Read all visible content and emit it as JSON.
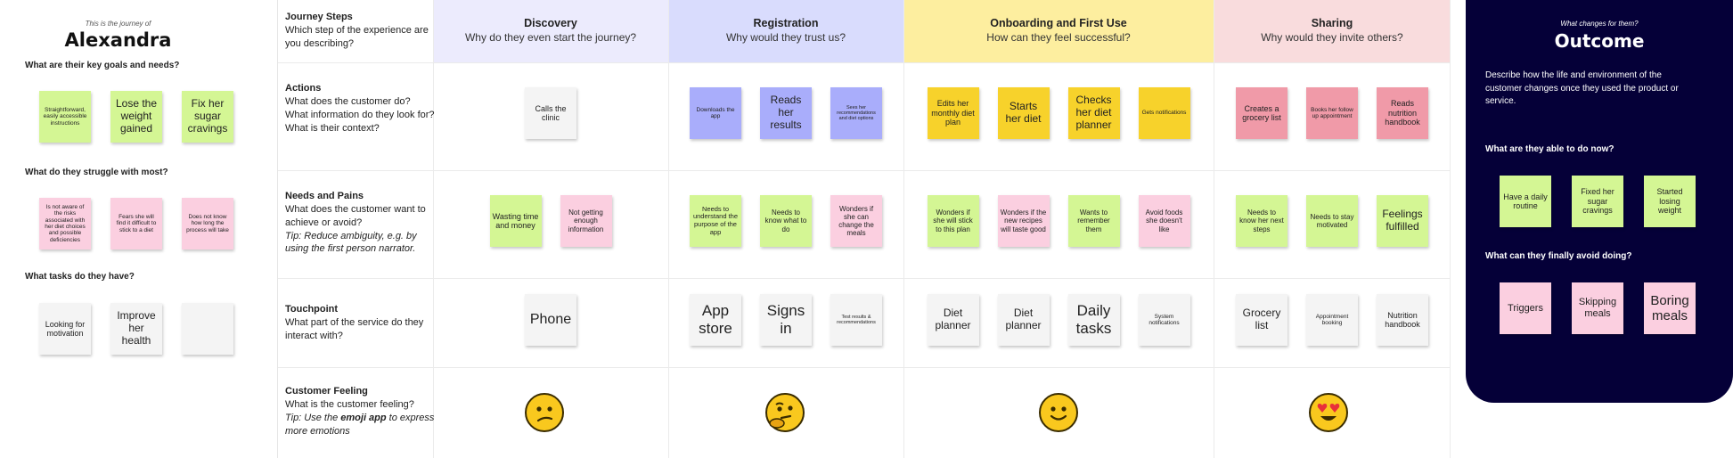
{
  "persona": {
    "intro": "This is the journey of",
    "name": "Alexandra",
    "goals_q": "What are their key goals and needs?",
    "goals": [
      "Straightforward, easily accessible instructions",
      "Lose the weight gained",
      "Fix her sugar cravings"
    ],
    "struggles_q": "What do they struggle with most?",
    "struggles": [
      "Is not aware of the risks associated with her diet choices and possible deficiencies",
      "Fears she will find it difficult to stick to a diet",
      "Does not know how long the process will take"
    ],
    "tasks_q": "What tasks do they have?",
    "tasks": [
      "Looking for motivation",
      "Improve her health",
      ""
    ]
  },
  "rows": {
    "steps": {
      "title": "Journey Steps",
      "text": "Which step of the experience are you describing?"
    },
    "actions": {
      "title": "Actions",
      "text": "What does the customer do? What information do they look for? What is their context?"
    },
    "needs": {
      "title": "Needs and Pains",
      "text": "What does the customer want to achieve or avoid?",
      "tip": "Tip: Reduce ambiguity, e.g. by using the first person narrator."
    },
    "touch": {
      "title": "Touchpoint",
      "text": "What part of the service do they interact with?"
    },
    "feeling": {
      "title": "Customer Feeling",
      "text": "What is the customer feeling?",
      "tip_a": "Tip: Use the ",
      "tip_b": "emoji app",
      "tip_c": " to express more emotions"
    }
  },
  "stages": [
    {
      "title": "Discovery",
      "question": "Why do they even start the journey?",
      "color": "#ecebfd",
      "actions": [
        "Calls the clinic"
      ],
      "needs": [
        "Wasting time and money",
        "Not getting enough information"
      ],
      "touch": [
        "Phone"
      ],
      "emotion": "confused"
    },
    {
      "title": "Registration",
      "question": "Why would they trust us?",
      "color": "#d9dcfd",
      "actions": [
        "Downloads the app",
        "Reads her results",
        "Sees her recommendations and diet options"
      ],
      "needs": [
        "Needs to understand the purpose of the app",
        "Needs to know what to do",
        "Wonders if she can change the meals"
      ],
      "touch": [
        "App store",
        "Signs in",
        "Test results & recommendations"
      ],
      "emotion": "thinking"
    },
    {
      "title": "Onboarding and First Use",
      "question": "How can they feel successful?",
      "color": "#fdee9f",
      "actions": [
        "Edits her monthly diet plan",
        "Starts her diet",
        "Checks her diet planner",
        "Gets notifications"
      ],
      "needs": [
        "Wonders if she will stick to this plan",
        "Wonders if the new recipes will taste good",
        "Wants to remember them",
        "Avoid foods she doesn't like"
      ],
      "touch": [
        "Diet planner",
        "Diet planner",
        "Daily tasks",
        "System notifications"
      ],
      "emotion": "smile"
    },
    {
      "title": "Sharing",
      "question": "Why would they invite others?",
      "color": "#f9dcdd",
      "actions": [
        "Creates a grocery list",
        "Books her follow up appointment",
        "Reads nutrition handbook"
      ],
      "needs": [
        "Needs to know her next steps",
        "Needs to stay motivated",
        "Feelings fulfilled"
      ],
      "touch": [
        "Grocery list",
        "Appointment booking",
        "Nutrition handbook"
      ],
      "emotion": "heart-eyes"
    }
  ],
  "outcome": {
    "label": "What changes for them?",
    "title": "Outcome",
    "description": "Describe how the life and environment of the customer changes once they used the product or service.",
    "able_q": "What are they able to do now?",
    "able": [
      "Have a daily routine",
      "Fixed her sugar cravings",
      "Started losing weight"
    ],
    "avoid_q": "What can they finally avoid doing?",
    "avoid": [
      "Triggers",
      "Skipping meals",
      "Boring meals"
    ]
  },
  "colors": {
    "outcome_bg": "#050038",
    "green_note": "#d4f694",
    "pink_note": "#fbcfe0",
    "blue_note": "#a9adfb",
    "yellow_note": "#f7d22b",
    "red_note": "#f09aa8",
    "grey_note": "#f4f4f4"
  }
}
